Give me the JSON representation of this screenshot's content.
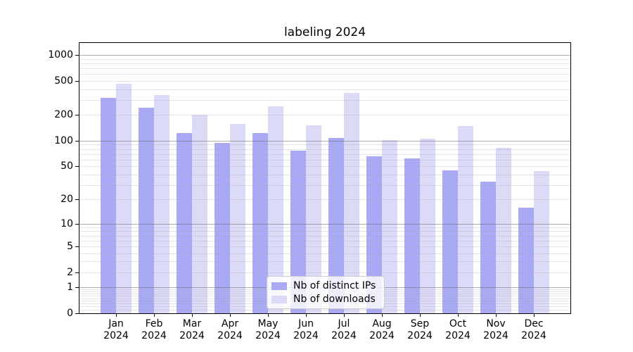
{
  "header": {
    "title": "labeling 2024"
  },
  "chart_data": {
    "type": "bar",
    "title": "labeling 2024",
    "categories": [
      "Jan 2024",
      "Feb 2024",
      "Mar 2024",
      "Apr 2024",
      "May 2024",
      "Jun 2024",
      "Jul 2024",
      "Aug 2024",
      "Sep 2024",
      "Oct 2024",
      "Nov 2024",
      "Dec 2024"
    ],
    "series": [
      {
        "name": "Nb of distinct IPs",
        "color": "#a9a9f5",
        "values": [
          317,
          244,
          124,
          95,
          124,
          77,
          107,
          65,
          62,
          45,
          33,
          16
        ]
      },
      {
        "name": "Nb of downloads",
        "color": "#dbdaf7",
        "values": [
          462,
          340,
          200,
          158,
          253,
          152,
          362,
          101,
          105,
          149,
          82,
          44
        ]
      }
    ],
    "xlabel": "",
    "ylabel": "",
    "y_axis": {
      "scale": "log1p",
      "tick_values": [
        0,
        1,
        2,
        5,
        10,
        20,
        50,
        100,
        200,
        500,
        1000
      ],
      "tick_labels": [
        "0",
        "1",
        "2",
        "5",
        "10",
        "20",
        "50",
        "100",
        "200",
        "500",
        "1000"
      ],
      "major_grid_values": [
        1,
        10,
        100,
        1000
      ],
      "minor_grid_values": [
        0.1,
        0.2,
        0.3,
        0.4,
        0.5,
        0.6,
        0.7,
        0.8,
        0.9,
        2,
        3,
        4,
        5,
        6,
        7,
        8,
        9,
        20,
        30,
        40,
        50,
        60,
        70,
        80,
        90,
        200,
        300,
        400,
        500,
        600,
        700,
        800,
        900
      ],
      "ylim": [
        0,
        1380
      ]
    },
    "legend": {
      "position": "lower center",
      "entries": [
        "Nb of distinct IPs",
        "Nb of downloads"
      ]
    },
    "grid": {
      "major_color": "#b0b0b0",
      "minor_color": "#e7e7ea",
      "grid_above_bars": true
    },
    "colors": {
      "distinct_ips_bar": "#a9a9f5",
      "downloads_bar": "#dbdaf7",
      "frame": "#000000"
    }
  }
}
